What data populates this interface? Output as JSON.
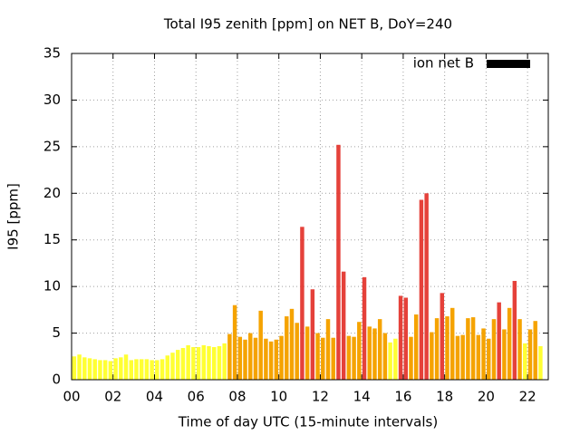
{
  "chart_data": {
    "type": "bar",
    "title": "Total I95 zenith [ppm] on NET B, DoY=240",
    "x_label": "Time of day UTC (15-minute intervals)",
    "y_label": "I95 [ppm]",
    "legend": "ion net B",
    "legend_color": "#000000",
    "legend_position": "top-right",
    "grid": true,
    "xlim": [
      0,
      23
    ],
    "ylim": [
      0,
      35
    ],
    "xticks": [
      {
        "value": 0,
        "label": "00"
      },
      {
        "value": 2,
        "label": "02"
      },
      {
        "value": 4,
        "label": "04"
      },
      {
        "value": 6,
        "label": "06"
      },
      {
        "value": 8,
        "label": "08"
      },
      {
        "value": 10,
        "label": "10"
      },
      {
        "value": 12,
        "label": "12"
      },
      {
        "value": 14,
        "label": "14"
      },
      {
        "value": 16,
        "label": "16"
      },
      {
        "value": 18,
        "label": "18"
      },
      {
        "value": 20,
        "label": "20"
      },
      {
        "value": 22,
        "label": "22"
      }
    ],
    "yticks": [
      0,
      5,
      10,
      15,
      20,
      25,
      30,
      35
    ],
    "x": [
      0.125,
      0.375,
      0.625,
      0.875,
      1.125,
      1.375,
      1.625,
      1.875,
      2.125,
      2.375,
      2.625,
      2.875,
      3.125,
      3.375,
      3.625,
      3.875,
      4.125,
      4.375,
      4.625,
      4.875,
      5.125,
      5.375,
      5.625,
      5.875,
      6.125,
      6.375,
      6.625,
      6.875,
      7.125,
      7.375,
      7.625,
      7.875,
      8.125,
      8.375,
      8.625,
      8.875,
      9.125,
      9.375,
      9.625,
      9.875,
      10.125,
      10.375,
      10.625,
      10.875,
      11.125,
      11.375,
      11.625,
      11.875,
      12.125,
      12.375,
      12.625,
      12.875,
      13.125,
      13.375,
      13.625,
      13.875,
      14.125,
      14.375,
      14.625,
      14.875,
      15.125,
      15.375,
      15.625,
      15.875,
      16.125,
      16.375,
      16.625,
      16.875,
      17.125,
      17.375,
      17.625,
      17.875,
      18.125,
      18.375,
      18.625,
      18.875,
      19.125,
      19.375,
      19.625,
      19.875,
      20.125,
      20.375,
      20.625,
      20.875,
      21.125,
      21.375,
      21.625,
      21.875,
      22.125,
      22.375,
      22.625
    ],
    "values": [
      2.5,
      2.7,
      2.4,
      2.3,
      2.2,
      2.1,
      2.1,
      2.0,
      2.3,
      2.4,
      2.7,
      2.1,
      2.2,
      2.2,
      2.2,
      2.1,
      2.1,
      2.2,
      2.6,
      2.9,
      3.2,
      3.4,
      3.7,
      3.5,
      3.5,
      3.7,
      3.6,
      3.5,
      3.6,
      3.9,
      4.9,
      8.0,
      4.6,
      4.3,
      5.0,
      4.5,
      7.4,
      4.4,
      4.1,
      4.3,
      4.7,
      6.8,
      7.6,
      6.1,
      16.4,
      5.7,
      9.7,
      5.0,
      4.5,
      6.5,
      4.5,
      25.2,
      11.6,
      4.7,
      4.6,
      6.2,
      11.0,
      5.7,
      5.5,
      6.5,
      5.0,
      4.0,
      4.4,
      9.0,
      8.8,
      4.6,
      7.0,
      19.3,
      20.0,
      5.1,
      6.6,
      9.3,
      6.8,
      7.7,
      4.7,
      4.8,
      6.6,
      6.7,
      4.8,
      5.5,
      4.4,
      6.5,
      8.3,
      5.4,
      7.7,
      10.6,
      6.5,
      3.9,
      5.4,
      6.3,
      3.6
    ],
    "colors": [
      "#ffff33",
      "#ffff33",
      "#ffff33",
      "#ffff33",
      "#ffff33",
      "#ffff33",
      "#ffff33",
      "#ffff33",
      "#ffff33",
      "#ffff33",
      "#ffff33",
      "#ffff33",
      "#ffff33",
      "#ffff33",
      "#ffff33",
      "#ffff33",
      "#ffff33",
      "#ffff33",
      "#ffff33",
      "#ffff33",
      "#ffff33",
      "#ffff33",
      "#ffff33",
      "#ffff33",
      "#ffff33",
      "#ffff33",
      "#ffff33",
      "#ffff33",
      "#ffff33",
      "#ffff33",
      "#f5a300",
      "#f5a300",
      "#f5a300",
      "#f5a300",
      "#f5a300",
      "#f5a300",
      "#f5a300",
      "#f5a300",
      "#f5a300",
      "#f5a300",
      "#f5a300",
      "#f5a300",
      "#f5a300",
      "#f5a300",
      "#e5413a",
      "#f5a300",
      "#e5413a",
      "#f5a300",
      "#f5a300",
      "#f5a300",
      "#f5a300",
      "#e5413a",
      "#e5413a",
      "#f5a300",
      "#f5a300",
      "#f5a300",
      "#e5413a",
      "#f5a300",
      "#f5a300",
      "#f5a300",
      "#f5a300",
      "#ffff33",
      "#ffff33",
      "#e5413a",
      "#e5413a",
      "#f5a300",
      "#f5a300",
      "#e5413a",
      "#e5413a",
      "#f5a300",
      "#f5a300",
      "#e5413a",
      "#f5a300",
      "#f5a300",
      "#f5a300",
      "#f5a300",
      "#f5a300",
      "#f5a300",
      "#f5a300",
      "#f5a300",
      "#f5a300",
      "#f5a300",
      "#e5413a",
      "#f5a300",
      "#f5a300",
      "#e5413a",
      "#f5a300",
      "#ffff33",
      "#f5a300",
      "#f5a300",
      "#ffff33"
    ]
  }
}
